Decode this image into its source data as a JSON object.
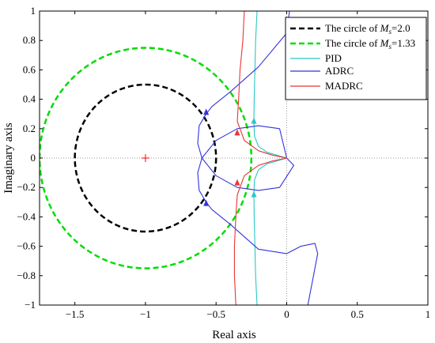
{
  "chart_data": {
    "type": "line",
    "xlabel": "Real axis",
    "ylabel": "Imaginary axis",
    "xlim": [
      -1.75,
      1
    ],
    "ylim": [
      -1,
      1
    ],
    "xticks": [
      -1.5,
      -1,
      -0.5,
      0,
      0.5,
      1
    ],
    "yticks": [
      -1,
      -0.8,
      -0.6,
      -0.4,
      -0.2,
      0,
      0.2,
      0.4,
      0.6,
      0.8,
      1
    ],
    "xtick_labels": [
      "−1.5",
      "−1",
      "−0.5",
      "0",
      "0.5",
      "1"
    ],
    "ytick_labels": [
      "−1",
      "−0.8",
      "−0.6",
      "−0.4",
      "−0.2",
      "0",
      "0.2",
      "0.4",
      "0.6",
      "0.8",
      "1"
    ],
    "legend_position": "top-right",
    "critical_point": {
      "x": -1,
      "y": 0,
      "color": "#ff0000"
    },
    "circles": [
      {
        "prefix": "The circle of ",
        "var": "M",
        "sub": "s",
        "suffix": "=2.0",
        "center": [
          -1,
          0
        ],
        "radius": 0.5,
        "color": "#000000",
        "dashed": true
      },
      {
        "prefix": "The circle of ",
        "var": "M",
        "sub": "s",
        "suffix": "=1.33",
        "center": [
          -1,
          0
        ],
        "radius": 0.75,
        "color": "#00dd00",
        "dashed": true
      }
    ],
    "series": [
      {
        "name": "PID",
        "color": "#29c7c7",
        "points": [
          [
            -0.21,
            1.0
          ],
          [
            -0.22,
            0.8
          ],
          [
            -0.225,
            0.6
          ],
          [
            -0.23,
            0.4
          ],
          [
            -0.232,
            0.25
          ],
          [
            -0.228,
            0.15
          ],
          [
            -0.2,
            0.08
          ],
          [
            -0.14,
            0.04
          ],
          [
            -0.07,
            0.02
          ],
          [
            0.0,
            0.0
          ],
          [
            -0.07,
            -0.02
          ],
          [
            -0.14,
            -0.04
          ],
          [
            -0.2,
            -0.08
          ],
          [
            -0.228,
            -0.15
          ],
          [
            -0.232,
            -0.25
          ],
          [
            -0.23,
            -0.4
          ],
          [
            -0.225,
            -0.6
          ],
          [
            -0.22,
            -0.8
          ],
          [
            -0.21,
            -1.0
          ]
        ],
        "arrows": [
          {
            "x": -0.232,
            "y": 0.25,
            "dir": "up"
          },
          {
            "x": -0.232,
            "y": -0.25,
            "dir": "up"
          }
        ]
      },
      {
        "name": "ADRC",
        "color": "#3333dd",
        "points": [
          [
            0.02,
            1.0
          ],
          [
            0.0,
            0.85
          ],
          [
            -0.2,
            0.62
          ],
          [
            -0.4,
            0.45
          ],
          [
            -0.53,
            0.35
          ],
          [
            -0.57,
            0.3
          ],
          [
            -0.62,
            0.22
          ],
          [
            -0.63,
            0.1
          ],
          [
            -0.6,
            0.0
          ],
          [
            -0.5,
            -0.12
          ],
          [
            -0.35,
            -0.2
          ],
          [
            -0.2,
            -0.22
          ],
          [
            -0.05,
            -0.2
          ],
          [
            0.05,
            -0.05
          ],
          [
            0.0,
            0.0
          ],
          [
            -0.05,
            0.2
          ],
          [
            -0.2,
            0.22
          ],
          [
            -0.35,
            0.2
          ],
          [
            -0.5,
            0.12
          ],
          [
            -0.6,
            0.0
          ],
          [
            -0.63,
            -0.1
          ],
          [
            -0.62,
            -0.22
          ],
          [
            -0.57,
            -0.3
          ],
          [
            -0.53,
            -0.35
          ],
          [
            -0.4,
            -0.45
          ],
          [
            -0.2,
            -0.62
          ],
          [
            0.0,
            -0.65
          ],
          [
            0.1,
            -0.6
          ],
          [
            0.2,
            -0.58
          ],
          [
            0.22,
            -0.65
          ],
          [
            0.18,
            -0.85
          ],
          [
            0.15,
            -1.0
          ]
        ],
        "arrows": [
          {
            "x": -0.57,
            "y": 0.31,
            "dir": "up"
          },
          {
            "x": -0.57,
            "y": -0.31,
            "dir": "up"
          }
        ]
      },
      {
        "name": "MADRC",
        "color": "#ee3333",
        "points": [
          [
            -0.3,
            1.0
          ],
          [
            -0.31,
            0.8
          ],
          [
            -0.33,
            0.6
          ],
          [
            -0.34,
            0.4
          ],
          [
            -0.35,
            0.25
          ],
          [
            -0.3,
            0.12
          ],
          [
            -0.2,
            0.05
          ],
          [
            -0.1,
            0.02
          ],
          [
            0.0,
            0.0
          ],
          [
            -0.1,
            -0.02
          ],
          [
            -0.2,
            -0.05
          ],
          [
            -0.3,
            -0.12
          ],
          [
            -0.35,
            -0.25
          ],
          [
            -0.36,
            -0.4
          ],
          [
            -0.37,
            -0.6
          ],
          [
            -0.37,
            -0.8
          ],
          [
            -0.36,
            -1.0
          ]
        ],
        "arrows": [
          {
            "x": -0.35,
            "y": 0.17,
            "dir": "up"
          },
          {
            "x": -0.35,
            "y": -0.17,
            "dir": "up"
          }
        ]
      }
    ]
  }
}
